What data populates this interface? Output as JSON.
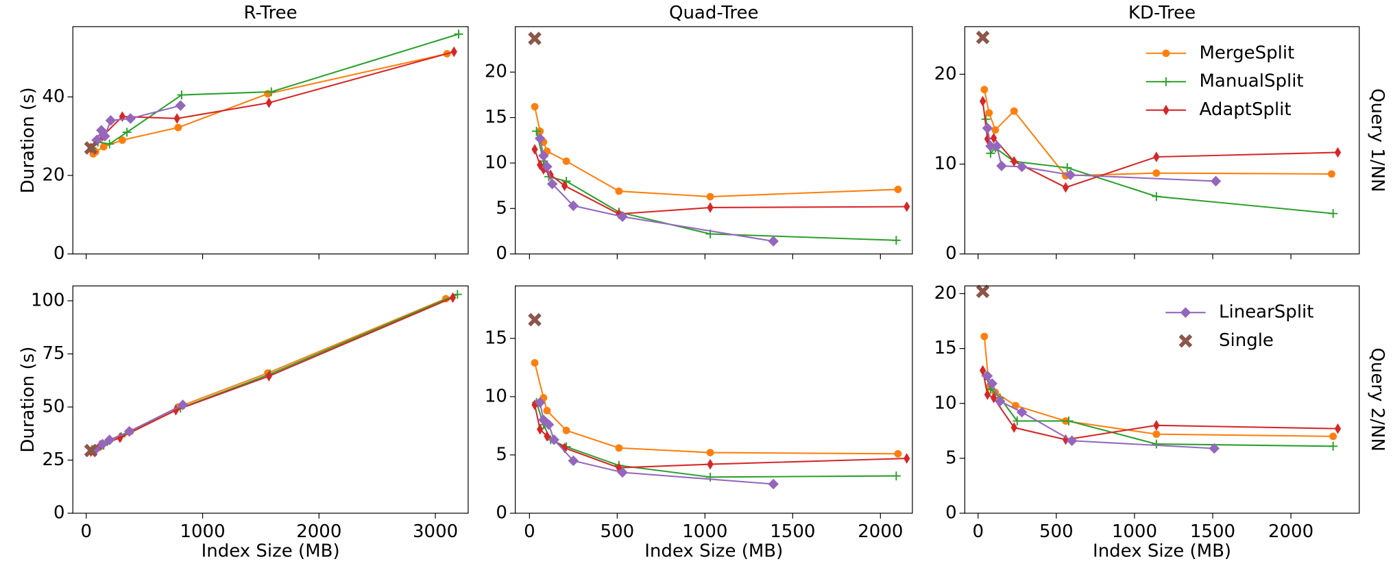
{
  "chart_data": [
    {
      "type": "line",
      "title": "R-Tree",
      "ylabel": "Duration (s)",
      "xlim": [
        -115,
        3282
      ],
      "xticks": [
        0,
        1000,
        2000,
        3000
      ],
      "ylim": [
        0,
        57.9
      ],
      "yticks": [
        0,
        20,
        40
      ],
      "series": [
        {
          "name": "MergeSplit",
          "color": "#ff7f0e",
          "marker": "circle",
          "x": [
            60,
            80,
            150,
            310,
            790,
            1560,
            3100
          ],
          "values": [
            25.5,
            26,
            27.3,
            29,
            32.2,
            40.8,
            51
          ]
        },
        {
          "name": "ManualSplit",
          "color": "#2ca02c",
          "marker": "plus",
          "x": [
            50,
            100,
            200,
            350,
            820,
            1590,
            3200
          ],
          "values": [
            27,
            28.5,
            28,
            31,
            40.5,
            41.3,
            56
          ]
        },
        {
          "name": "AdaptSplit",
          "color": "#d62728",
          "marker": "thin_diamond",
          "x": [
            40,
            100,
            140,
            310,
            780,
            1570,
            3160
          ],
          "values": [
            27,
            29,
            30,
            35,
            34.5,
            38.5,
            51.5
          ]
        },
        {
          "name": "LinearSplit",
          "color": "#9467bd",
          "marker": "diamond",
          "x": [
            90,
            130,
            160,
            210,
            380,
            810
          ],
          "values": [
            29,
            31.5,
            30,
            34,
            34.5,
            37.8
          ]
        },
        {
          "name": "Single",
          "color": "#8c564b",
          "marker": "x",
          "x": [
            40
          ],
          "values": [
            27
          ]
        }
      ]
    },
    {
      "type": "line",
      "title": "Quad-Tree",
      "xlim": [
        -81,
        2182
      ],
      "xticks": [
        0,
        500,
        1000,
        1500,
        2000
      ],
      "ylim": [
        0,
        25
      ],
      "yticks": [
        0,
        5,
        10,
        15,
        20
      ],
      "series": [
        {
          "name": "MergeSplit",
          "color": "#ff7f0e",
          "marker": "circle",
          "x": [
            30,
            60,
            80,
            100,
            210,
            510,
            1030,
            2100
          ],
          "values": [
            16.2,
            13.5,
            12.3,
            11.3,
            10.2,
            6.9,
            6.3,
            7.1
          ]
        },
        {
          "name": "ManualSplit",
          "color": "#2ca02c",
          "marker": "plus",
          "x": [
            40,
            80,
            110,
            210,
            510,
            1030,
            2090
          ],
          "values": [
            13.5,
            10.2,
            8.5,
            8,
            4.6,
            2.2,
            1.5
          ]
        },
        {
          "name": "AdaptSplit",
          "color": "#d62728",
          "marker": "thin_diamond",
          "x": [
            30,
            60,
            80,
            120,
            200,
            510,
            1030,
            2150
          ],
          "values": [
            11.5,
            9.8,
            9.3,
            8.7,
            7.5,
            4.4,
            5.1,
            5.2
          ]
        },
        {
          "name": "LinearSplit",
          "color": "#9467bd",
          "marker": "diamond",
          "x": [
            60,
            80,
            100,
            130,
            250,
            530,
            1390
          ],
          "values": [
            12.7,
            10.8,
            9.6,
            7.7,
            5.3,
            4.1,
            1.4
          ]
        },
        {
          "name": "Single",
          "color": "#8c564b",
          "marker": "x",
          "x": [
            30
          ],
          "values": [
            23.7
          ]
        }
      ]
    },
    {
      "type": "line",
      "title": "KD-Tree",
      "row_label": "Query 1/NN",
      "legend": "upper right",
      "xlim": [
        -85,
        2437
      ],
      "xticks": [
        0,
        500,
        1000,
        1500,
        2000
      ],
      "ylim": [
        0,
        25.3
      ],
      "yticks": [
        0,
        10,
        20
      ],
      "series": [
        {
          "name": "MergeSplit",
          "color": "#ff7f0e",
          "marker": "circle",
          "x": [
            40,
            70,
            110,
            230,
            560,
            1140,
            2260
          ],
          "values": [
            18.3,
            15.7,
            13.8,
            15.9,
            8.7,
            9,
            8.9
          ]
        },
        {
          "name": "ManualSplit",
          "color": "#2ca02c",
          "marker": "plus",
          "x": [
            50,
            80,
            110,
            230,
            570,
            1140,
            2270
          ],
          "values": [
            15,
            11.2,
            11.8,
            10.3,
            9.6,
            6.4,
            4.5
          ]
        },
        {
          "name": "AdaptSplit",
          "color": "#d62728",
          "marker": "thin_diamond",
          "x": [
            30,
            60,
            100,
            230,
            560,
            1140,
            2300
          ],
          "values": [
            17,
            12.8,
            12.9,
            10.3,
            7.4,
            10.8,
            11.3
          ]
        },
        {
          "name": "LinearSplit",
          "color": "#9467bd",
          "marker": "diamond",
          "x": [
            60,
            80,
            120,
            150,
            280,
            590,
            1520
          ],
          "values": [
            14,
            12,
            12,
            9.8,
            9.7,
            8.8,
            8.1
          ]
        },
        {
          "name": "Single",
          "color": "#8c564b",
          "marker": "x",
          "x": [
            30
          ],
          "values": [
            24.1
          ]
        }
      ]
    },
    {
      "type": "line",
      "ylabel": "Duration (s)",
      "xlabel": "Index Size (MB)",
      "xlim": [
        -115,
        3282
      ],
      "xticks": [
        0,
        1000,
        2000,
        3000
      ],
      "ylim": [
        0,
        107
      ],
      "yticks": [
        0,
        25,
        50,
        75,
        100
      ],
      "series": [
        {
          "name": "MergeSplit",
          "color": "#ff7f0e",
          "marker": "circle",
          "x": [
            60,
            110,
            190,
            380,
            790,
            1560,
            3090
          ],
          "values": [
            29,
            31,
            34,
            38.5,
            50,
            66,
            101
          ]
        },
        {
          "name": "ManualSplit",
          "color": "#2ca02c",
          "marker": "plus",
          "x": [
            50,
            150,
            300,
            810,
            1580,
            3190
          ],
          "values": [
            30,
            32,
            36,
            49.5,
            65.5,
            103
          ]
        },
        {
          "name": "AdaptSplit",
          "color": "#d62728",
          "marker": "thin_diamond",
          "x": [
            40,
            120,
            290,
            770,
            1570,
            3150
          ],
          "values": [
            29,
            32,
            35.5,
            48.5,
            64.5,
            101.5
          ]
        },
        {
          "name": "LinearSplit",
          "color": "#9467bd",
          "marker": "diamond",
          "x": [
            80,
            140,
            200,
            370,
            830
          ],
          "values": [
            30,
            32.5,
            34.5,
            38.5,
            51
          ]
        },
        {
          "name": "Single",
          "color": "#8c564b",
          "marker": "x",
          "x": [
            40
          ],
          "values": [
            29.5
          ]
        }
      ]
    },
    {
      "type": "line",
      "xlabel": "Index Size (MB)",
      "xlim": [
        -81,
        2182
      ],
      "xticks": [
        0,
        500,
        1000,
        1500,
        2000
      ],
      "ylim": [
        0,
        19.5
      ],
      "yticks": [
        0,
        5,
        10,
        15
      ],
      "series": [
        {
          "name": "MergeSplit",
          "color": "#ff7f0e",
          "marker": "circle",
          "x": [
            30,
            80,
            100,
            210,
            510,
            1030,
            2100
          ],
          "values": [
            12.9,
            9.9,
            8.8,
            7.1,
            5.6,
            5.2,
            5.1
          ]
        },
        {
          "name": "ManualSplit",
          "color": "#2ca02c",
          "marker": "plus",
          "x": [
            40,
            80,
            120,
            210,
            510,
            1030,
            2090
          ],
          "values": [
            9.5,
            7.6,
            6.3,
            5.7,
            4.1,
            3.1,
            3.2
          ]
        },
        {
          "name": "AdaptSplit",
          "color": "#d62728",
          "marker": "thin_diamond",
          "x": [
            30,
            60,
            100,
            200,
            510,
            1030,
            2150
          ],
          "values": [
            9.3,
            7.2,
            6.6,
            5.6,
            3.9,
            4.2,
            4.7
          ]
        },
        {
          "name": "LinearSplit",
          "color": "#9467bd",
          "marker": "diamond",
          "x": [
            60,
            80,
            110,
            140,
            250,
            530,
            1390
          ],
          "values": [
            9.5,
            8,
            7.6,
            6.3,
            4.5,
            3.5,
            2.5
          ]
        },
        {
          "name": "Single",
          "color": "#8c564b",
          "marker": "x",
          "x": [
            30
          ],
          "values": [
            16.6
          ]
        }
      ]
    },
    {
      "type": "line",
      "xlabel": "Index Size (MB)",
      "row_label": "Query 2/NN",
      "legend": "upper right",
      "xlim": [
        -85,
        2437
      ],
      "xticks": [
        0,
        500,
        1000,
        1500,
        2000
      ],
      "ylim": [
        0,
        20.7
      ],
      "yticks": [
        0,
        5,
        10,
        15,
        20
      ],
      "series": [
        {
          "name": "MergeSplit",
          "color": "#ff7f0e",
          "marker": "circle",
          "x": [
            40,
            70,
            110,
            240,
            560,
            1140,
            2270
          ],
          "values": [
            16.1,
            11.5,
            11,
            9.8,
            8.4,
            7.2,
            7
          ]
        },
        {
          "name": "ManualSplit",
          "color": "#2ca02c",
          "marker": "plus",
          "x": [
            50,
            80,
            140,
            250,
            580,
            1140,
            2270
          ],
          "values": [
            12.5,
            11.3,
            10.5,
            8.4,
            8.4,
            6.3,
            6.1
          ]
        },
        {
          "name": "AdaptSplit",
          "color": "#d62728",
          "marker": "thin_diamond",
          "x": [
            30,
            60,
            100,
            230,
            560,
            1140,
            2300
          ],
          "values": [
            13,
            10.8,
            10.5,
            7.8,
            6.7,
            8,
            7.7
          ]
        },
        {
          "name": "LinearSplit",
          "color": "#9467bd",
          "marker": "diamond",
          "x": [
            60,
            90,
            140,
            280,
            600,
            1510
          ],
          "values": [
            12.5,
            11.8,
            10.2,
            9.2,
            6.6,
            5.9
          ]
        },
        {
          "name": "Single",
          "color": "#8c564b",
          "marker": "x",
          "x": [
            30
          ],
          "values": [
            20.2
          ]
        }
      ]
    }
  ]
}
